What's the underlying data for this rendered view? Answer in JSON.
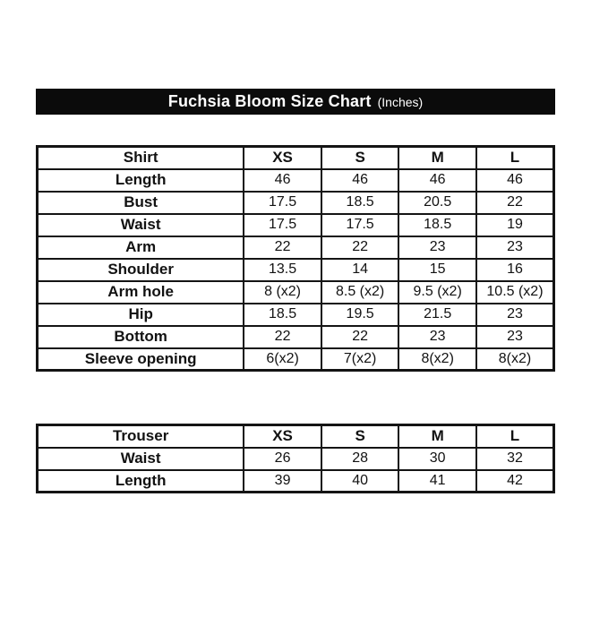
{
  "title": {
    "main": "Fuchsia Bloom Size Chart",
    "unit": "(Inches)"
  },
  "colors": {
    "background": "#ffffff",
    "title_bar_background": "#0b0b0b",
    "title_bar_text": "#ffffff",
    "table_border": "#141414",
    "table_text": "#121212"
  },
  "chart_data": [
    {
      "type": "table",
      "title": "Shirt",
      "columns": [
        "Shirt",
        "XS",
        "S",
        "M",
        "L"
      ],
      "rows": [
        [
          "Length",
          "46",
          "46",
          "46",
          "46"
        ],
        [
          "Bust",
          "17.5",
          "18.5",
          "20.5",
          "22"
        ],
        [
          "Waist",
          "17.5",
          "17.5",
          "18.5",
          "19"
        ],
        [
          "Arm",
          "22",
          "22",
          "23",
          "23"
        ],
        [
          "Shoulder",
          "13.5",
          "14",
          "15",
          "16"
        ],
        [
          "Arm hole",
          "8 (x2)",
          "8.5 (x2)",
          "9.5 (x2)",
          "10.5 (x2)"
        ],
        [
          "Hip",
          "18.5",
          "19.5",
          "21.5",
          "23"
        ],
        [
          "Bottom",
          "22",
          "22",
          "23",
          "23"
        ],
        [
          "Sleeve opening",
          "6(x2)",
          "7(x2)",
          "8(x2)",
          "8(x2)"
        ]
      ]
    },
    {
      "type": "table",
      "title": "Trouser",
      "columns": [
        "Trouser",
        "XS",
        "S",
        "M",
        "L"
      ],
      "rows": [
        [
          "Waist",
          "26",
          "28",
          "30",
          "32"
        ],
        [
          "Length",
          "39",
          "40",
          "41",
          "42"
        ]
      ]
    }
  ]
}
